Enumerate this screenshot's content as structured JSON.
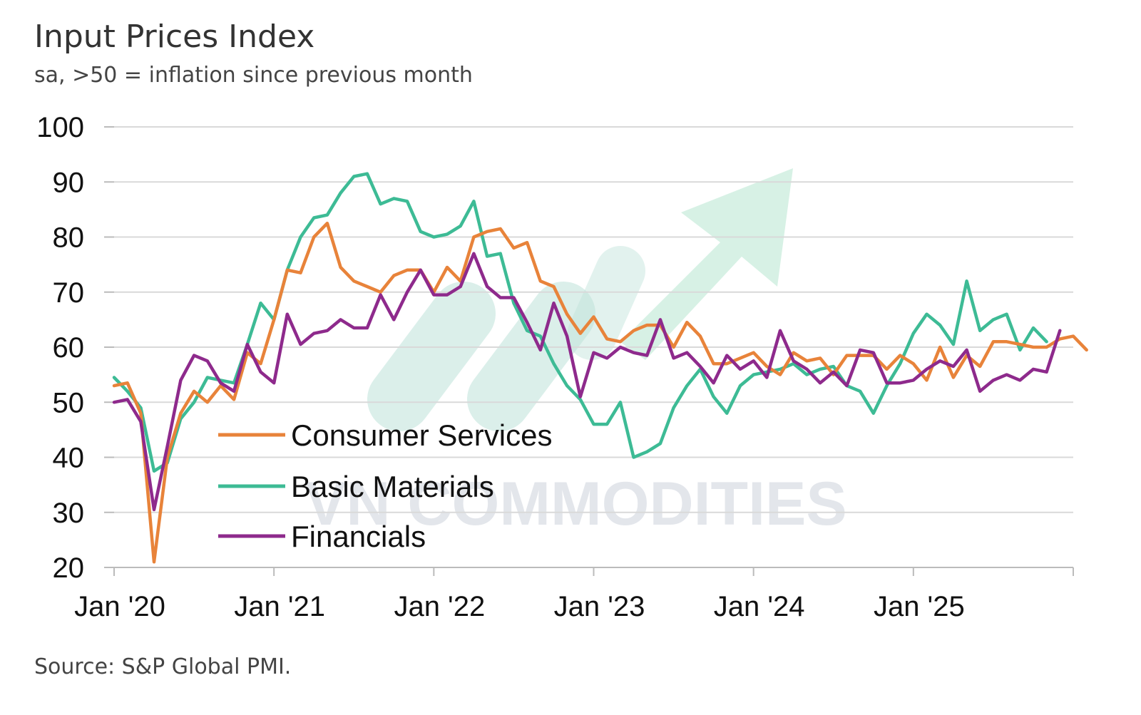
{
  "chart_data": {
    "type": "line",
    "title": "Input Prices Index",
    "subtitle": "sa, >50 = inflation since previous month",
    "source": "Source: S&P Global PMI.",
    "ylim": [
      20,
      100
    ],
    "yticks": [
      20,
      30,
      40,
      50,
      60,
      70,
      80,
      90,
      100
    ],
    "xlim": [
      "2020-01",
      "2026-01"
    ],
    "xticks": [
      {
        "date": "2020-01",
        "label": "Jan '20"
      },
      {
        "date": "2021-01",
        "label": "Jan '21"
      },
      {
        "date": "2022-01",
        "label": "Jan '22"
      },
      {
        "date": "2023-01",
        "label": "Jan '23"
      },
      {
        "date": "2024-01",
        "label": "Jan '24"
      },
      {
        "date": "2025-01",
        "label": "Jan '25"
      }
    ],
    "grid": true,
    "legend_position": "lower-left",
    "watermark": "VN COMMODITIES",
    "start": "2020-01",
    "series": [
      {
        "name": "Consumer Services",
        "color": "#e8833a",
        "values": [
          53,
          53.5,
          48,
          21,
          40,
          48,
          52,
          50,
          53,
          50.5,
          59,
          57,
          65,
          74,
          73.5,
          80,
          82.5,
          74.5,
          72,
          71,
          70,
          73,
          74,
          74,
          70,
          74.5,
          72,
          80,
          81,
          81.5,
          78,
          79,
          72,
          71,
          66,
          62.5,
          65.5,
          61.5,
          61,
          63,
          64,
          64,
          60,
          64.5,
          62,
          57,
          57,
          58,
          59,
          56.5,
          55,
          59,
          57.5,
          58,
          55,
          58.5,
          58.5,
          58.5,
          56,
          58.5,
          57,
          54,
          60,
          54.5,
          58.5,
          56.5,
          61,
          61,
          60.5,
          60,
          60,
          61.5,
          62,
          59.5
        ]
      },
      {
        "name": "Basic Materials",
        "color": "#3dbb95",
        "values": [
          54.5,
          52,
          49,
          37.5,
          39,
          47,
          50,
          54.5,
          54,
          53.5,
          60.5,
          68,
          65,
          74,
          80,
          83.5,
          84,
          88,
          91,
          91.5,
          86,
          87,
          86.5,
          81,
          80,
          80.5,
          82,
          86.5,
          76.5,
          77,
          68,
          63,
          62,
          57,
          53,
          50.5,
          46,
          46,
          50,
          40,
          41,
          42.5,
          49,
          53,
          56,
          51,
          48,
          53,
          55,
          55.5,
          56,
          57,
          55,
          56,
          56.5,
          53,
          52,
          48,
          53,
          57,
          62.5,
          66,
          64,
          60.5,
          72,
          63,
          65,
          66,
          59.5,
          63.5,
          61
        ]
      },
      {
        "name": "Financials",
        "color": "#8e2a8c",
        "values": [
          50,
          50.5,
          46.5,
          30.5,
          42,
          54,
          58.5,
          57.5,
          53.5,
          52,
          60.5,
          55.5,
          53.5,
          66,
          60.5,
          62.5,
          63,
          65,
          63.5,
          63.5,
          69.5,
          65,
          70,
          74,
          69.5,
          69.5,
          71,
          77,
          71,
          69,
          69,
          64.5,
          59.5,
          68,
          62,
          51,
          59,
          58,
          60,
          59,
          58.5,
          65,
          58,
          59,
          56.5,
          53.5,
          58.5,
          56,
          57.5,
          54.5,
          63,
          57.5,
          56,
          53.5,
          55.5,
          53,
          59.5,
          59,
          53.5,
          53.5,
          54,
          56,
          57.5,
          56.5,
          59.5,
          52,
          54,
          55,
          54,
          56,
          55.5,
          63
        ]
      }
    ]
  }
}
